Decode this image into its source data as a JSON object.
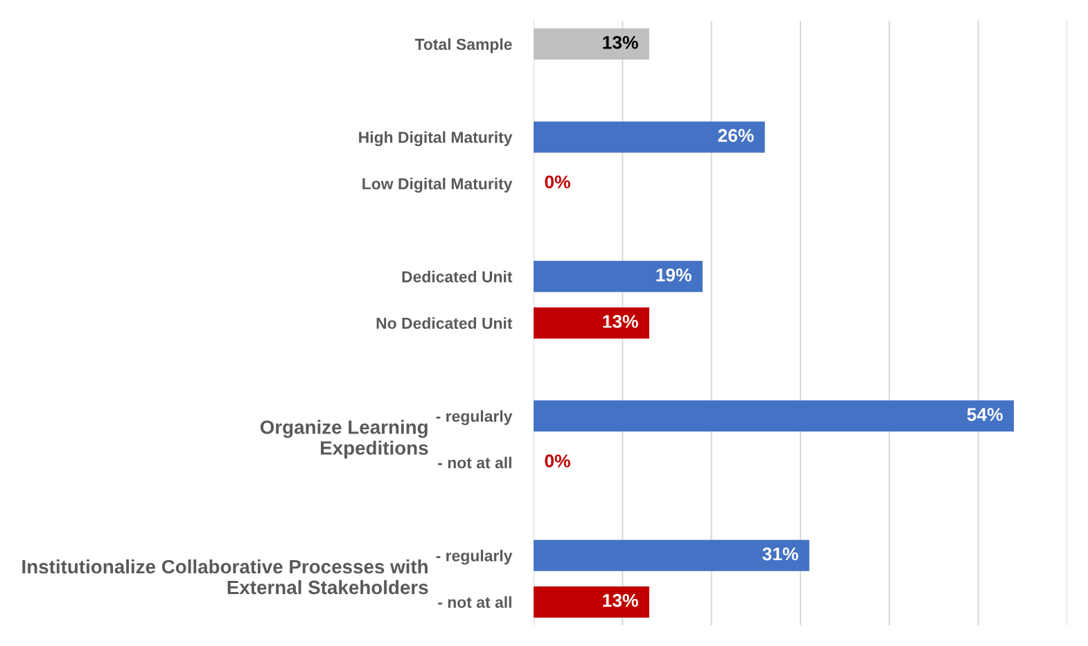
{
  "chart_data": {
    "type": "bar",
    "orientation": "horizontal",
    "categories": [
      "Total Sample",
      null,
      "High Digital Maturity",
      "Low Digital Maturity",
      null,
      "Dedicated Unit",
      "No Dedicated Unit",
      null,
      "- regularly",
      "- not at all",
      null,
      "- regularly",
      "- not at all"
    ],
    "values": [
      13,
      null,
      26,
      0,
      null,
      19,
      13,
      null,
      54,
      0,
      null,
      31,
      13
    ],
    "colors": [
      "#bfbfbf",
      null,
      "#4472c4",
      "#c00000",
      null,
      "#4472c4",
      "#c00000",
      null,
      "#4472c4",
      "#c00000",
      null,
      "#4472c4",
      "#c00000"
    ],
    "value_labels": [
      "13%",
      null,
      "26%",
      "0%",
      null,
      "19%",
      "13%",
      null,
      "54%",
      "0%",
      null,
      "31%",
      "13%"
    ],
    "annotations": [
      "Organize Learning Expeditions",
      "Institutionalize Collaborative Processes with External Stakeholders"
    ],
    "xlim": [
      0,
      60
    ],
    "xticks": [
      {
        "value": 0,
        "label": null
      },
      {
        "value": 10,
        "label": null
      },
      {
        "value": 20,
        "label": null
      },
      {
        "value": 30,
        "label": null
      },
      {
        "value": 40,
        "label": null
      },
      {
        "value": 50,
        "label": null
      },
      {
        "value": 60,
        "label": null
      }
    ],
    "tick_labels": "y",
    "grid": "x",
    "legend": false
  }
}
